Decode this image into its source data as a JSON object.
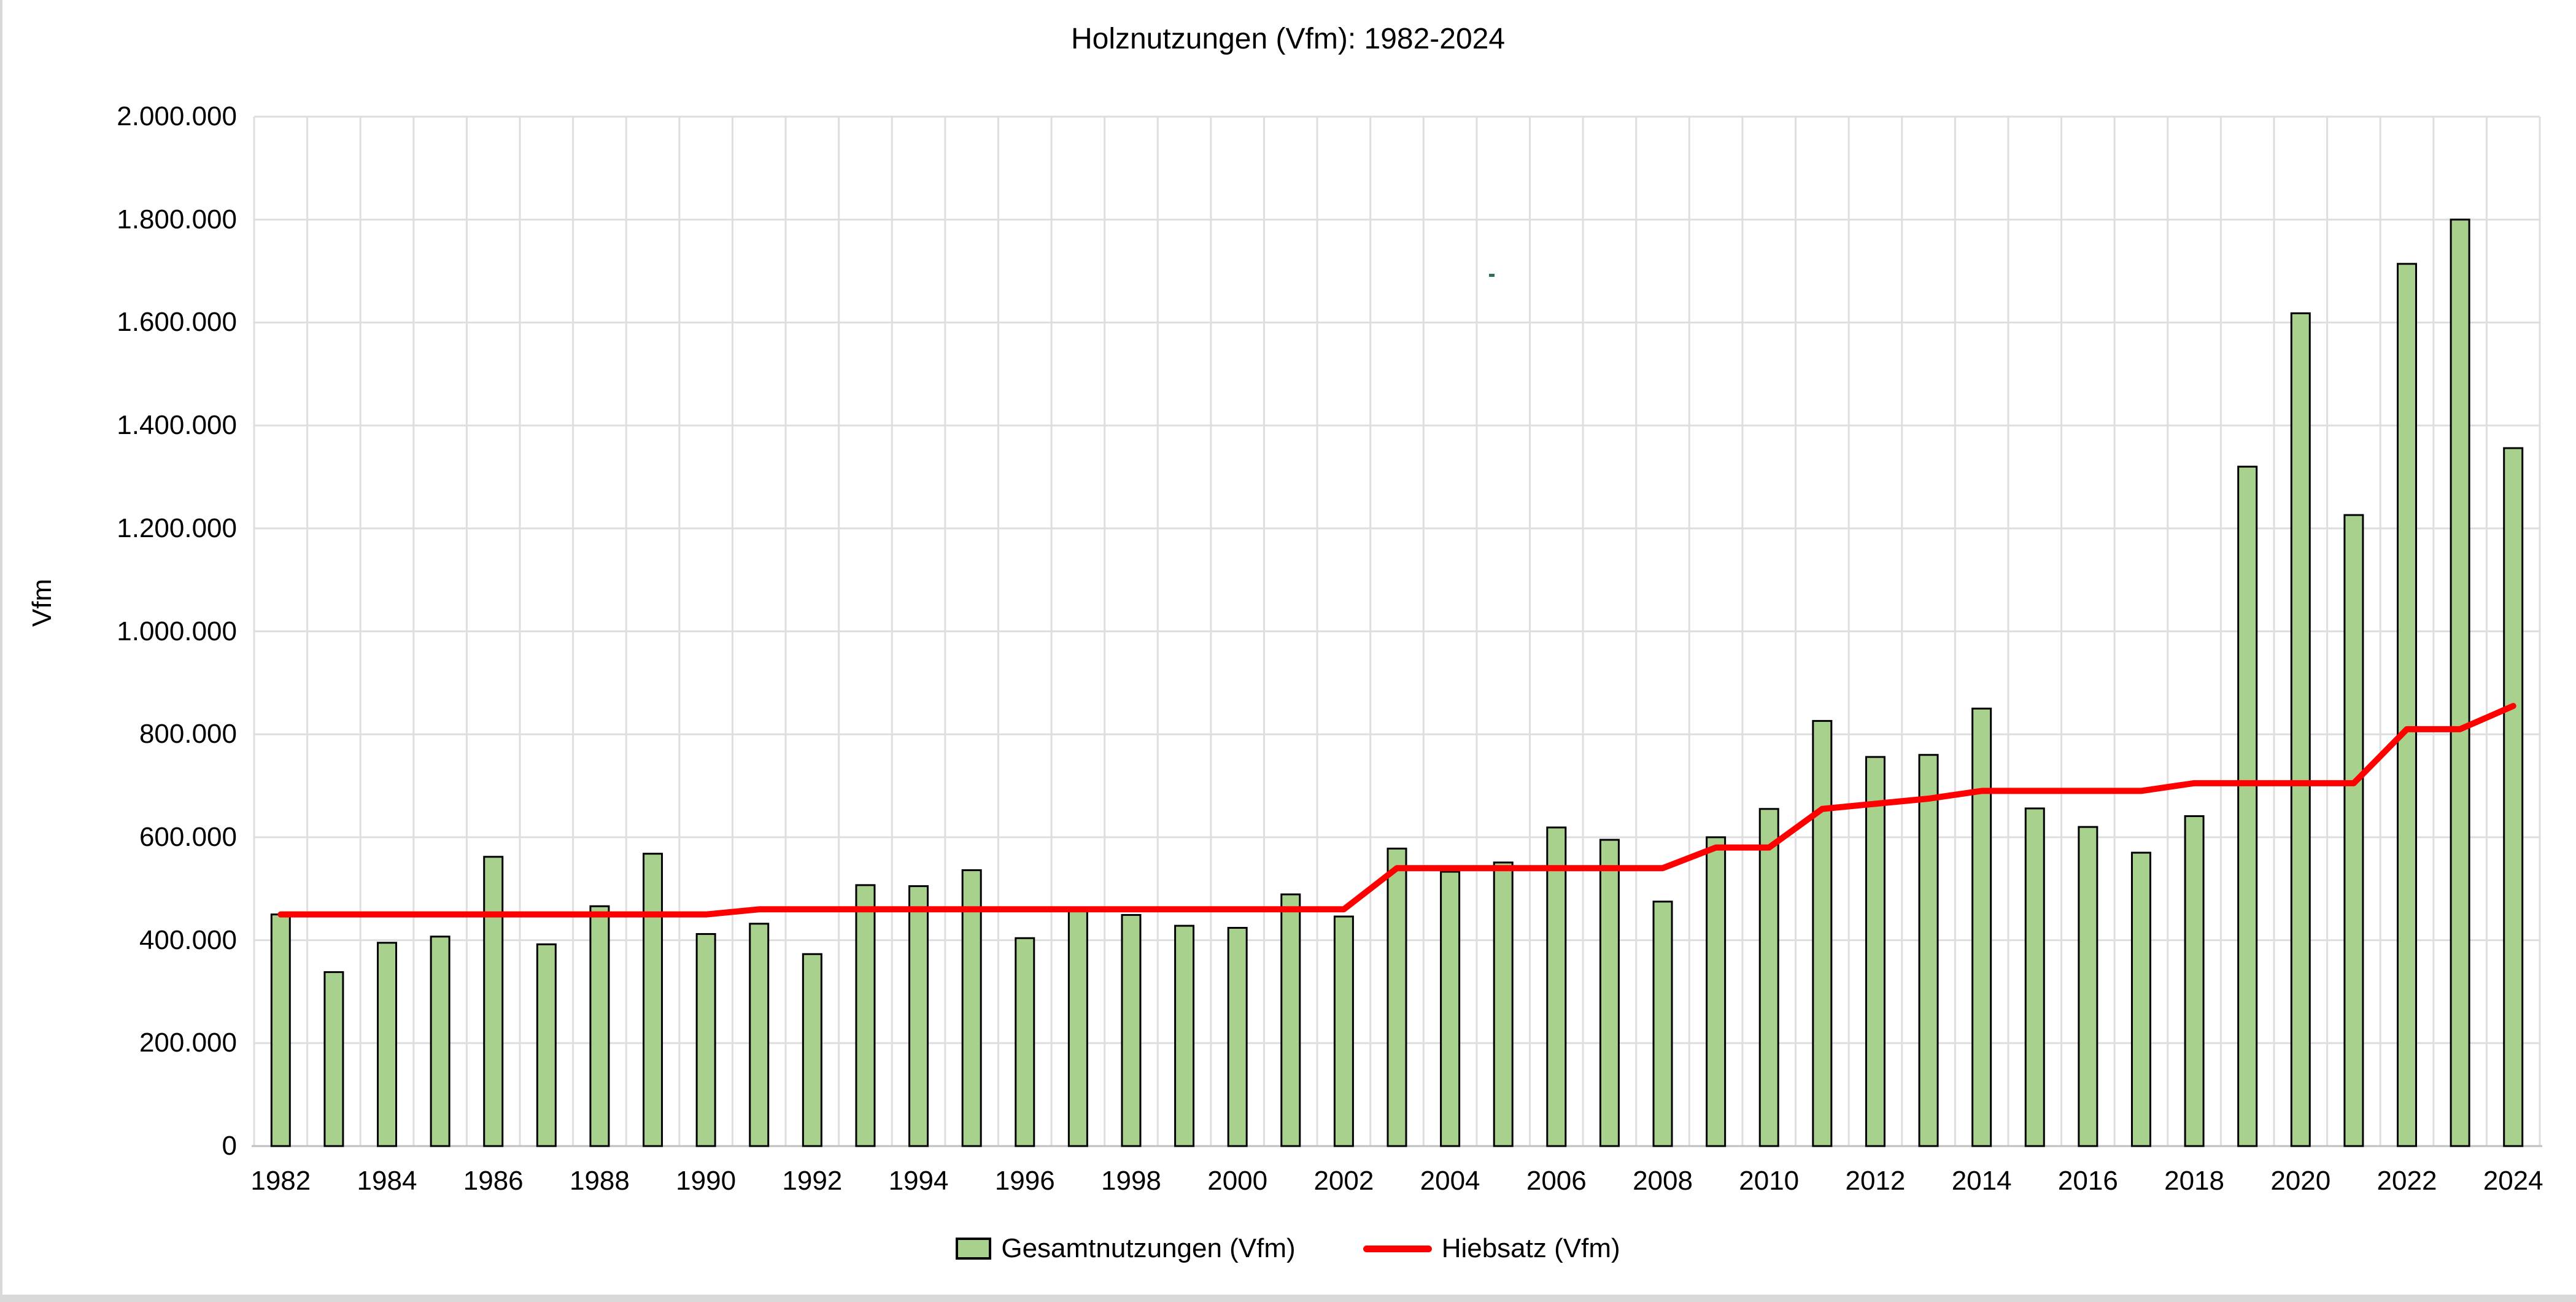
{
  "window": {
    "frame_color": "#d9d9d9",
    "background": "#ffffff"
  },
  "chart_data": {
    "type": "bar",
    "title": "Holznutzungen (Vfm): 1982-2024",
    "xlabel": "",
    "ylabel": "Vfm",
    "ylim": [
      0,
      2000000
    ],
    "y_tick_step": 200000,
    "grid": "horizontal+vertical",
    "legend_position": "bottom",
    "gridline_color": "#dedede",
    "axis_line_color": "#bfbfbf",
    "categories": [
      "1982",
      "1983",
      "1984",
      "1985",
      "1986",
      "1987",
      "1988",
      "1989",
      "1990",
      "1991",
      "1992",
      "1993",
      "1994",
      "1995",
      "1996",
      "1997",
      "1998",
      "1999",
      "2000",
      "2001",
      "2002",
      "2003",
      "2004",
      "2005",
      "2006",
      "2007",
      "2008",
      "2009",
      "2010",
      "2011",
      "2012",
      "2013",
      "2014",
      "2015",
      "2016",
      "2017",
      "2018",
      "2019",
      "2020",
      "2021",
      "2022",
      "2023",
      "2024"
    ],
    "x_tick_labels": [
      "1982",
      "1984",
      "1986",
      "1988",
      "1990",
      "1992",
      "1994",
      "1996",
      "1998",
      "2000",
      "2002",
      "2004",
      "2006",
      "2008",
      "2010",
      "2012",
      "2014",
      "2016",
      "2018",
      "2020",
      "2022",
      "2024"
    ],
    "y_tick_labels": [
      "0",
      "200.000",
      "400.000",
      "600.000",
      "800.000",
      "1.000.000",
      "1.200.000",
      "1.400.000",
      "1.600.000",
      "1.800.000",
      "2.000.000"
    ],
    "series": [
      {
        "name": "Gesamtnutzungen (Vfm)",
        "type": "bar",
        "color": "#a9d18e",
        "border_color": "#000000",
        "values": [
          450000,
          338000,
          395000,
          407000,
          562000,
          392000,
          466000,
          568000,
          412000,
          432000,
          373000,
          507000,
          505000,
          536000,
          404000,
          458000,
          449000,
          428000,
          424000,
          489000,
          446000,
          578000,
          533000,
          551000,
          619000,
          595000,
          475000,
          600000,
          655000,
          826000,
          756000,
          760000,
          850000,
          656000,
          620000,
          570000,
          641000,
          1320000,
          1618000,
          1226000,
          1714000,
          1800000,
          1356000
        ]
      },
      {
        "name": "Hiebsatz (Vfm)",
        "type": "line",
        "color": "#ff0000",
        "values": [
          450000,
          450000,
          450000,
          450000,
          450000,
          450000,
          450000,
          450000,
          450000,
          460000,
          460000,
          460000,
          460000,
          460000,
          460000,
          460000,
          460000,
          460000,
          460000,
          460000,
          460000,
          540000,
          540000,
          540000,
          540000,
          540000,
          540000,
          580000,
          580000,
          655000,
          665000,
          675000,
          690000,
          690000,
          690000,
          690000,
          705000,
          705000,
          705000,
          705000,
          810000,
          810000,
          855000
        ]
      }
    ]
  }
}
